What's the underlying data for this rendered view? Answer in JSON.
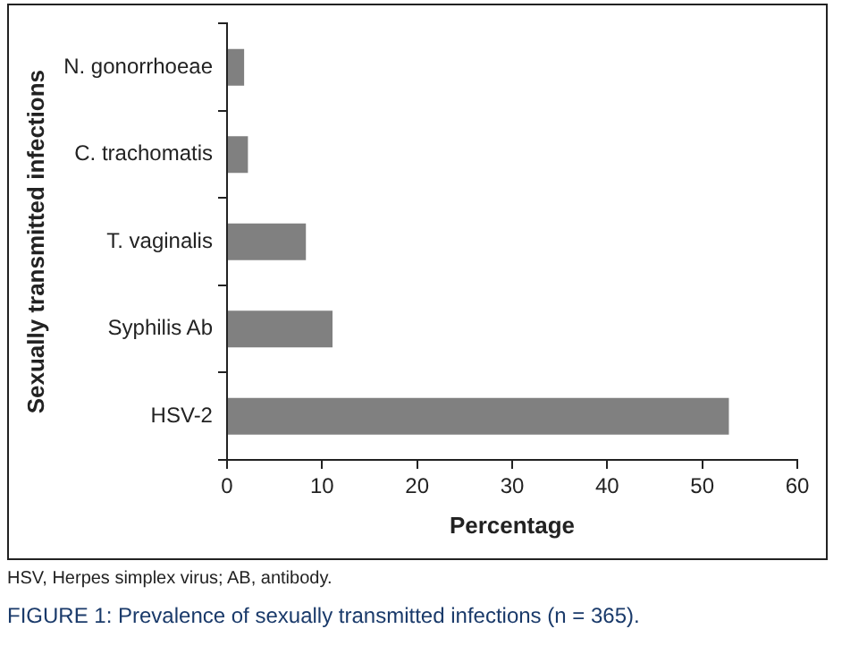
{
  "chart_data": {
    "type": "bar",
    "orientation": "horizontal",
    "title": "FIGURE 1: Prevalence of sexually transmitted infections (n = 365).",
    "annotations": [
      "HSV, Herpes simplex virus; AB, antibody."
    ],
    "xlabel": "Percentage",
    "ylabel": "Sexually transmitted infections",
    "categories": [
      "N. gonorrhoeae",
      "C. trachomatis",
      "T. vaginalis",
      "Syphilis Ab",
      "HSV-2"
    ],
    "values": [
      1.8,
      2.2,
      8.3,
      11.1,
      52.8
    ],
    "color": "#808080",
    "xlim": [
      0,
      60
    ],
    "xticks": [
      0,
      10,
      20,
      30,
      40,
      50,
      60
    ],
    "grid": false,
    "legend": false
  }
}
